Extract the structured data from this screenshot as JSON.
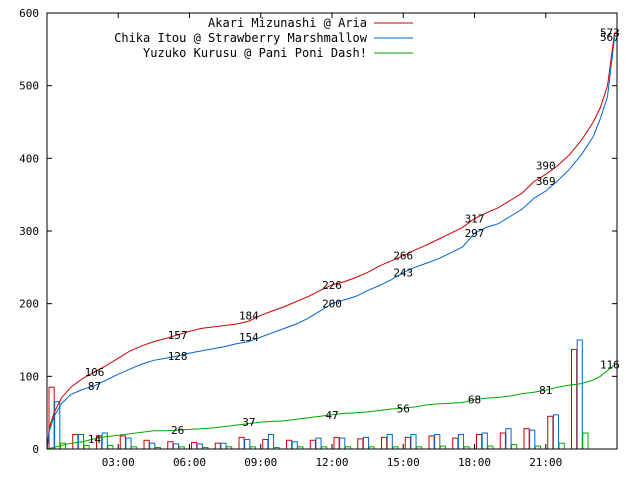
{
  "chart_data": {
    "type": "line",
    "title": "",
    "xlabel": "",
    "ylabel": "",
    "ylim": [
      0,
      600
    ],
    "xlim": [
      0,
      24
    ],
    "grid": false,
    "legend_position": "top-right",
    "y_ticks": [
      "0",
      "100",
      "200",
      "300",
      "400",
      "500",
      "600"
    ],
    "x_ticks": [
      {
        "x": 3,
        "label": "03:00"
      },
      {
        "x": 6,
        "label": "06:00"
      },
      {
        "x": 9,
        "label": "09:00"
      },
      {
        "x": 12,
        "label": "12:00"
      },
      {
        "x": 15,
        "label": "15:00"
      },
      {
        "x": 18,
        "label": "18:00"
      },
      {
        "x": 21,
        "label": "21:00"
      }
    ],
    "series": [
      {
        "name": "Akari Mizunashi @ Aria",
        "color": "#cc0000",
        "cumulative_x": [
          0,
          0.1,
          0.3,
          0.6,
          1,
          1.5,
          2,
          2.5,
          3,
          3.5,
          4,
          4.5,
          5,
          5.5,
          6,
          6.5,
          7,
          7.5,
          8,
          8.5,
          9,
          9.5,
          10,
          10.5,
          11,
          11.5,
          12,
          12.5,
          13,
          13.5,
          14,
          14.5,
          15,
          15.5,
          16,
          16.5,
          17,
          17.5,
          18,
          18.5,
          19,
          19.5,
          20,
          20.5,
          21,
          21.5,
          22,
          22.5,
          23,
          23.3,
          23.6,
          23.9
        ],
        "cumulative_y": [
          0,
          30,
          50,
          70,
          85,
          97,
          106,
          115,
          125,
          135,
          142,
          148,
          152,
          157,
          162,
          166,
          168,
          170,
          172,
          176,
          184,
          190,
          196,
          203,
          210,
          218,
          226,
          230,
          236,
          243,
          252,
          259,
          266,
          274,
          281,
          289,
          297,
          305,
          317,
          325,
          332,
          342,
          352,
          368,
          378,
          390,
          405,
          425,
          450,
          470,
          500,
          573
        ],
        "labels": [
          {
            "x": 2,
            "y": 106,
            "text": "106"
          },
          {
            "x": 5.5,
            "y": 157,
            "text": "157"
          },
          {
            "x": 8.5,
            "y": 184,
            "text": "184"
          },
          {
            "x": 12,
            "y": 226,
            "text": "226"
          },
          {
            "x": 15,
            "y": 266,
            "text": "266"
          },
          {
            "x": 18,
            "y": 317,
            "text": "317"
          },
          {
            "x": 21,
            "y": 390,
            "text": "390"
          },
          {
            "x": 23.7,
            "y": 573,
            "text": "573"
          }
        ],
        "hourly": [
          85,
          20,
          18,
          18,
          12,
          10,
          9,
          8,
          16,
          13,
          12,
          12,
          16,
          14,
          16,
          16,
          18,
          15,
          20,
          22,
          28,
          45,
          137,
          0
        ]
      },
      {
        "name": "Chika Itou @ Strawberry Marshmallow",
        "color": "#0066cc",
        "cumulative_x": [
          0,
          0.1,
          0.3,
          0.6,
          1,
          1.5,
          2,
          2.5,
          3,
          3.5,
          4,
          4.5,
          5,
          5.5,
          6,
          6.5,
          7,
          7.5,
          8,
          8.5,
          9,
          9.5,
          10,
          10.5,
          11,
          11.5,
          12,
          12.5,
          13,
          13.5,
          14,
          14.5,
          15,
          15.5,
          16,
          16.5,
          17,
          17.5,
          18,
          18.5,
          19,
          19.5,
          20,
          20.5,
          21,
          21.5,
          22,
          22.5,
          23,
          23.3,
          23.6,
          23.9
        ],
        "cumulative_y": [
          0,
          25,
          45,
          62,
          75,
          82,
          87,
          95,
          103,
          110,
          117,
          122,
          125,
          128,
          132,
          135,
          138,
          141,
          145,
          148,
          154,
          160,
          166,
          172,
          180,
          190,
          200,
          205,
          210,
          218,
          225,
          233,
          243,
          250,
          256,
          262,
          270,
          278,
          297,
          305,
          310,
          320,
          330,
          345,
          355,
          369,
          385,
          405,
          430,
          455,
          485,
          567
        ],
        "labels": [
          {
            "x": 2,
            "y": 87,
            "text": "87"
          },
          {
            "x": 5.5,
            "y": 128,
            "text": "128"
          },
          {
            "x": 8.5,
            "y": 154,
            "text": "154"
          },
          {
            "x": 12,
            "y": 200,
            "text": "200"
          },
          {
            "x": 15,
            "y": 243,
            "text": "243"
          },
          {
            "x": 18,
            "y": 297,
            "text": "297"
          },
          {
            "x": 21,
            "y": 369,
            "text": "369"
          },
          {
            "x": 23.7,
            "y": 567,
            "text": "567"
          }
        ],
        "hourly": [
          65,
          20,
          22,
          15,
          8,
          7,
          7,
          8,
          13,
          20,
          10,
          15,
          15,
          16,
          20,
          20,
          20,
          20,
          22,
          28,
          26,
          47,
          150,
          0
        ]
      },
      {
        "name": "Yuzuko Kurusu @ Pani Poni Dash!",
        "color": "#00aa00",
        "cumulative_x": [
          0,
          0.5,
          1,
          1.5,
          2,
          2.5,
          3,
          3.5,
          4,
          4.5,
          5,
          5.5,
          6,
          6.5,
          7,
          7.5,
          8,
          8.5,
          9,
          9.5,
          10,
          10.5,
          11,
          11.5,
          12,
          12.5,
          13,
          13.5,
          14,
          14.5,
          15,
          15.5,
          16,
          16.5,
          17,
          17.5,
          18,
          18.5,
          19,
          19.5,
          20,
          20.5,
          21,
          21.5,
          22,
          22.5,
          23,
          23.3,
          23.6,
          23.9
        ],
        "cumulative_y": [
          0,
          4,
          8,
          10,
          14,
          17,
          19,
          21,
          23,
          25,
          25,
          26,
          27,
          28,
          29,
          31,
          33,
          35,
          37,
          38,
          39,
          41,
          43,
          45,
          47,
          49,
          50,
          51,
          53,
          55,
          56,
          58,
          61,
          62,
          63,
          64,
          68,
          70,
          71,
          73,
          76,
          78,
          81,
          85,
          88,
          90,
          95,
          100,
          108,
          116
        ],
        "labels": [
          {
            "x": 2,
            "y": 14,
            "text": "14"
          },
          {
            "x": 5.5,
            "y": 26,
            "text": "26"
          },
          {
            "x": 8.5,
            "y": 37,
            "text": "37"
          },
          {
            "x": 12,
            "y": 47,
            "text": "47"
          },
          {
            "x": 15,
            "y": 56,
            "text": "56"
          },
          {
            "x": 18,
            "y": 68,
            "text": "68"
          },
          {
            "x": 21,
            "y": 81,
            "text": "81"
          },
          {
            "x": 23.7,
            "y": 116,
            "text": "116"
          }
        ],
        "hourly": [
          8,
          5,
          5,
          3,
          2,
          3,
          2,
          3,
          3,
          2,
          3,
          3,
          3,
          3,
          3,
          3,
          4,
          3,
          4,
          6,
          4,
          8,
          22,
          0
        ]
      }
    ]
  }
}
